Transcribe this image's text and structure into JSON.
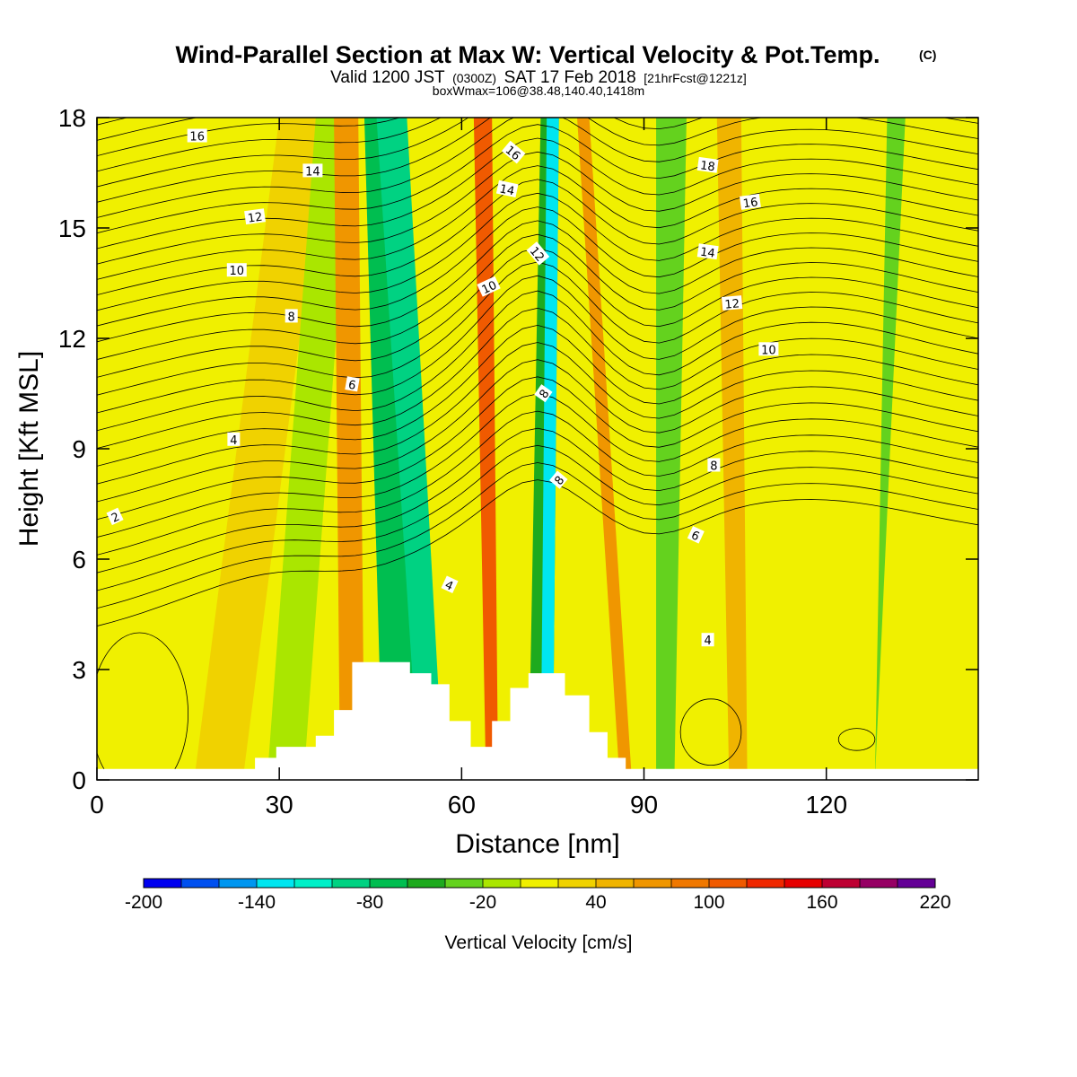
{
  "title": "Wind-Parallel Section at Max W: Vertical Velocity & Pot.Temp.",
  "title_mark": "(C)",
  "subtitle_parts": [
    "Valid 1200 JST",
    "(0300Z)",
    "SAT 17 Feb 2018",
    "[21hrFcst@1221z]"
  ],
  "note": "boxWmax=106@38.48,140.40,1418m",
  "chart_data": {
    "type": "heatmap",
    "xlabel": "Distance [nm]",
    "ylabel": "Height [Kft MSL]",
    "xlim": [
      0,
      145
    ],
    "ylim": [
      0,
      18
    ],
    "x_ticks": [
      0,
      30,
      60,
      90,
      120
    ],
    "y_ticks": [
      0,
      3,
      6,
      9,
      12,
      15,
      18
    ],
    "colorbar": {
      "label": "Vertical Velocity [cm/s]",
      "levels": [
        -200,
        -180,
        -160,
        -140,
        -120,
        -100,
        -80,
        -60,
        -40,
        -20,
        0,
        20,
        40,
        60,
        80,
        100,
        120,
        140,
        160,
        180,
        200,
        220
      ],
      "tick_labels": [
        -200,
        -140,
        -80,
        -20,
        40,
        100,
        160,
        220
      ],
      "colors": [
        "#0000f0",
        "#0050f0",
        "#0096f0",
        "#00e6f0",
        "#00f0c8",
        "#00d282",
        "#00be50",
        "#1eaa1e",
        "#64d21e",
        "#aae600",
        "#f0f000",
        "#f0d200",
        "#f0b400",
        "#f09600",
        "#f07800",
        "#f05a00",
        "#f02800",
        "#e60000",
        "#be0032",
        "#960064",
        "#640096"
      ]
    },
    "w_bands": [
      {
        "x": [
          0,
          9,
          16,
          24
        ],
        "value": 10
      },
      {
        "x": [
          16,
          24,
          30,
          38
        ],
        "value": 30
      },
      {
        "x": [
          28,
          34,
          36,
          42
        ],
        "value": -10
      },
      {
        "x": [
          40,
          44,
          39,
          43
        ],
        "value": 70
      },
      {
        "x": [
          47,
          53,
          44,
          50
        ],
        "value": -70
      },
      {
        "x": [
          53,
          57,
          46,
          51
        ],
        "value": -100
      },
      {
        "x": [
          64,
          66,
          62,
          65
        ],
        "value": 110
      },
      {
        "x": [
          71,
          75,
          73,
          76
        ],
        "value": -60
      },
      {
        "x": [
          73,
          75,
          74,
          76
        ],
        "value": -130
      },
      {
        "x": [
          86,
          88,
          79,
          81
        ],
        "value": 60
      },
      {
        "x": [
          92,
          95,
          92,
          97
        ],
        "value": -40
      },
      {
        "x": [
          104,
          107,
          102,
          106
        ],
        "value": 50
      },
      {
        "x": [
          128,
          128,
          130,
          133
        ],
        "value": -40
      }
    ],
    "terrain": [
      [
        0,
        0.3
      ],
      [
        26,
        0.3
      ],
      [
        26,
        0.6
      ],
      [
        29.5,
        0.6
      ],
      [
        29.5,
        0.9
      ],
      [
        36,
        0.9
      ],
      [
        36,
        1.2
      ],
      [
        39,
        1.2
      ],
      [
        39,
        1.9
      ],
      [
        42,
        1.9
      ],
      [
        42,
        3.2
      ],
      [
        51.5,
        3.2
      ],
      [
        51.5,
        2.9
      ],
      [
        55,
        2.9
      ],
      [
        55,
        2.6
      ],
      [
        58,
        2.6
      ],
      [
        58,
        1.6
      ],
      [
        61.5,
        1.6
      ],
      [
        61.5,
        0.9
      ],
      [
        65,
        0.9
      ],
      [
        65,
        1.6
      ],
      [
        68,
        1.6
      ],
      [
        68,
        2.5
      ],
      [
        71,
        2.5
      ],
      [
        71,
        2.9
      ],
      [
        77,
        2.9
      ],
      [
        77,
        2.3
      ],
      [
        81,
        2.3
      ],
      [
        81,
        1.3
      ],
      [
        84,
        1.3
      ],
      [
        84,
        0.6
      ],
      [
        87,
        0.6
      ],
      [
        87,
        0.3
      ],
      [
        145,
        0.3
      ]
    ],
    "theta_labels": [
      {
        "text": "16",
        "x": 16.5,
        "y": 17.5,
        "angle": 0
      },
      {
        "text": "14",
        "x": 35.5,
        "y": 16.55,
        "angle": 0
      },
      {
        "text": "12",
        "x": 26,
        "y": 15.3,
        "angle": -8
      },
      {
        "text": "10",
        "x": 23,
        "y": 13.85,
        "angle": 0
      },
      {
        "text": "8",
        "x": 32,
        "y": 12.6,
        "angle": 0
      },
      {
        "text": "6",
        "x": 42,
        "y": 10.75,
        "angle": 10
      },
      {
        "text": "4",
        "x": 22.5,
        "y": 9.25,
        "angle": 0
      },
      {
        "text": "2",
        "x": 3,
        "y": 7.15,
        "angle": -25
      },
      {
        "text": "16",
        "x": 68.5,
        "y": 17.05,
        "angle": 40
      },
      {
        "text": "14",
        "x": 67.5,
        "y": 16.05,
        "angle": 12
      },
      {
        "text": "12",
        "x": 72.5,
        "y": 14.3,
        "angle": 50
      },
      {
        "text": "10",
        "x": 64.5,
        "y": 13.4,
        "angle": -25
      },
      {
        "text": "8",
        "x": 73.5,
        "y": 10.5,
        "angle": -55
      },
      {
        "text": "8",
        "x": 76,
        "y": 8.15,
        "angle": -50
      },
      {
        "text": "4",
        "x": 58,
        "y": 5.3,
        "angle": 25
      },
      {
        "text": "18",
        "x": 100.5,
        "y": 16.7,
        "angle": 8
      },
      {
        "text": "16",
        "x": 107.5,
        "y": 15.7,
        "angle": -8
      },
      {
        "text": "14",
        "x": 100.5,
        "y": 14.35,
        "angle": 8
      },
      {
        "text": "12",
        "x": 104.5,
        "y": 12.95,
        "angle": -5
      },
      {
        "text": "10",
        "x": 110.5,
        "y": 11.7,
        "angle": 0
      },
      {
        "text": "8",
        "x": 101.5,
        "y": 8.55,
        "angle": 0
      },
      {
        "text": "6",
        "x": 98.5,
        "y": 6.65,
        "angle": 25
      },
      {
        "text": "4",
        "x": 100.5,
        "y": 3.8,
        "angle": 0
      }
    ]
  }
}
